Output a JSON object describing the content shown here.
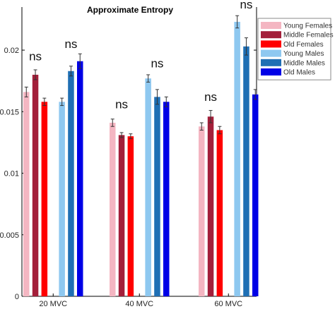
{
  "chart_data": {
    "type": "bar",
    "title": "Approximate Entropy",
    "xlabel": "",
    "ylabel": "",
    "categories": [
      "20 MVC",
      "40 MVC",
      "60 MVC"
    ],
    "ylim": [
      0,
      0.0235
    ],
    "yticks": [
      0,
      0.005,
      0.01,
      0.015,
      0.02
    ],
    "ytick_labels": [
      "0",
      "0.005",
      "0.01",
      "0.015",
      "0.02"
    ],
    "legend_position": "top-right",
    "series": [
      {
        "name": "Young Females",
        "color": "#f4b6c2",
        "values": [
          0.0166,
          0.0141,
          0.0138
        ],
        "errors": [
          0.0004,
          0.0003,
          0.0003
        ]
      },
      {
        "name": "Middle Females",
        "color": "#a31f3a",
        "values": [
          0.018,
          0.0131,
          0.0146
        ],
        "errors": [
          0.0004,
          0.0002,
          0.0005
        ]
      },
      {
        "name": "Old Females",
        "color": "#ff0000",
        "values": [
          0.0158,
          0.013,
          0.0135
        ],
        "errors": [
          0.0003,
          0.0002,
          0.0003
        ]
      },
      {
        "name": "Young Males",
        "color": "#8ec8f0",
        "values": [
          0.0158,
          0.0177,
          0.0223
        ],
        "errors": [
          0.0003,
          0.0003,
          0.0005
        ]
      },
      {
        "name": "Middle Males",
        "color": "#1f6fb4",
        "values": [
          0.0183,
          0.0162,
          0.0203
        ],
        "errors": [
          0.0004,
          0.0006,
          0.0007
        ]
      },
      {
        "name": "Old Males",
        "color": "#0000e6",
        "values": [
          0.0191,
          0.0158,
          0.0164
        ],
        "errors": [
          0.0006,
          0.0004,
          0.0004
        ]
      }
    ],
    "annotations": [
      {
        "text": "ns",
        "category": 0,
        "group": "females",
        "value": 0.0193
      },
      {
        "text": "ns",
        "category": 0,
        "group": "males",
        "value": 0.0203
      },
      {
        "text": "ns",
        "category": 1,
        "group": "females",
        "value": 0.0154
      },
      {
        "text": "ns",
        "category": 1,
        "group": "males",
        "value": 0.0187
      },
      {
        "text": "ns",
        "category": 2,
        "group": "females",
        "value": 0.016
      },
      {
        "text": "ns",
        "category": 2,
        "group": "males",
        "value": 0.0235
      }
    ]
  }
}
